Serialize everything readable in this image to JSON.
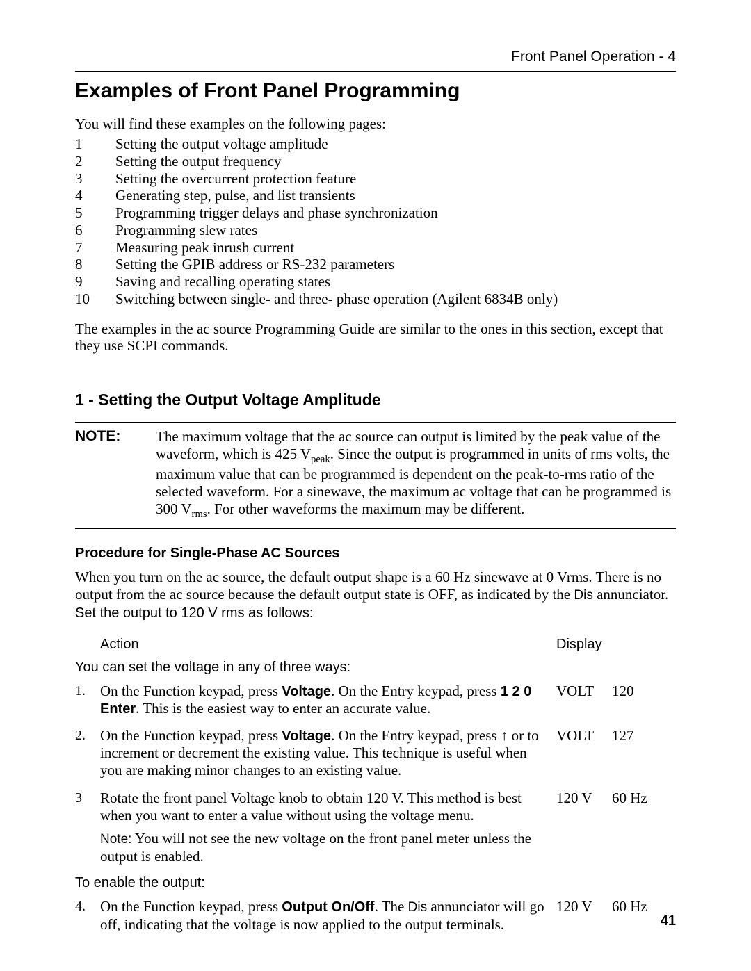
{
  "header": {
    "right": "Front Panel Operation - 4"
  },
  "title": "Examples of Front Panel Programming",
  "intro": "You will find these examples on the following pages:",
  "examples": [
    {
      "n": "1",
      "t": "Setting the output voltage amplitude"
    },
    {
      "n": "2",
      "t": "Setting the output frequency"
    },
    {
      "n": "3",
      "t": "Setting the overcurrent protection feature"
    },
    {
      "n": "4",
      "t": "Generating step, pulse, and list transients"
    },
    {
      "n": "5",
      "t": "Programming trigger delays and phase synchronization"
    },
    {
      "n": "6",
      "t": "Programming slew rates"
    },
    {
      "n": "7",
      "t": "Measuring peak inrush current"
    },
    {
      "n": "8",
      "t": "Setting the GPIB address or RS-232 parameters"
    },
    {
      "n": "9",
      "t": "Saving and recalling operating states"
    },
    {
      "n": "10",
      "t": "Switching between single- and three- phase operation (Agilent 6834B only)"
    }
  ],
  "after_examples": "The examples in the ac source Programming Guide are similar to the ones in this section, except that they use SCPI commands.",
  "section1": {
    "heading": "1 - Setting the Output Voltage Amplitude",
    "note_label": "NOTE:",
    "note": {
      "p1": "The maximum voltage that the ac source can output is limited by the peak value of the waveform, which is 425 V",
      "sub1": "peak",
      "p2": ". Since the output is programmed in units of rms volts, the maximum value that can be programmed is dependent on the peak-to-rms ratio of the selected waveform. For a sinewave, the maximum ac voltage that can be programmed is 300 V",
      "sub2": "rms",
      "p3": ". For other waveforms the maximum may be different."
    },
    "sub_heading": "Procedure for Single-Phase AC Sources",
    "proc_intro": {
      "a": "When you turn on the ac source, the default output shape is a 60 Hz sinewave at 0 Vrms. There is no output from the ac source because the default output state is OFF, as indicated by the ",
      "dis": "Dis",
      "b": " annunciator. ",
      "set": "Set the output to 120 V rms as follows:"
    },
    "col_headers": {
      "action": "Action",
      "display": "Display"
    },
    "group1": "You can set the voltage in any of three ways:",
    "rows": [
      {
        "n": "1.",
        "a1": "On the Function keypad, press ",
        "k1": "Voltage",
        "a2": ". On the Entry keypad, press ",
        "k2": "1 2 0 Enter",
        "a3": ". This is the easiest way to enter an accurate value.",
        "d1": "VOLT",
        "d2": "120"
      },
      {
        "n": "2.",
        "a1": "On the Function keypad, press ",
        "k1": "Voltage",
        "a2": ".  On the Entry keypad, press  ↑  or      to increment or decrement the existing value. This technique is useful when you are making minor changes to an existing value.",
        "d1": "VOLT",
        "d2": "127"
      },
      {
        "n": "3",
        "a1": "Rotate the front panel Voltage knob to obtain 120 V. This method is best when you want to enter a value without using the voltage menu.",
        "note_lbl": "Note:",
        "note_txt": " You will not see the new voltage on the front panel meter unless the output is enabled.",
        "d1": "120 V",
        "d2": "60 Hz"
      }
    ],
    "group2": "To enable the output:",
    "row4": {
      "n": "4.",
      "a1": "On the Function keypad, press ",
      "k1": "Output On/Off",
      "a2": ". The ",
      "dis": "Dis",
      "a3": " annunciator will go off, indicating that the voltage is now applied to the output terminals.",
      "d1": "120 V",
      "d2": "60 Hz"
    }
  },
  "page_number": "41"
}
